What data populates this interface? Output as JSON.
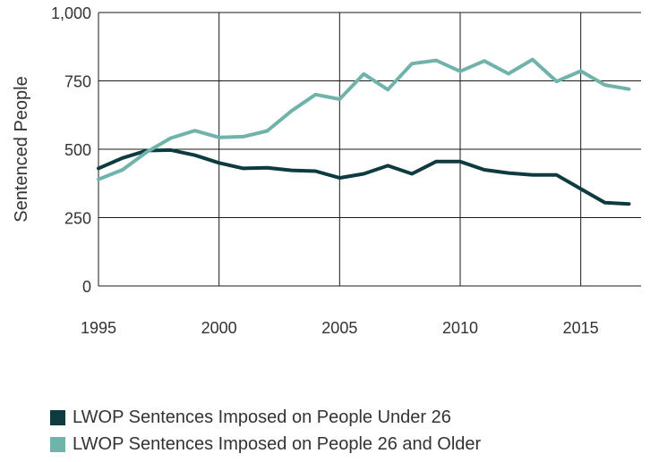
{
  "chart_data": {
    "type": "line",
    "ylabel": "Sentenced People",
    "xlabel": "",
    "xlim": [
      1995,
      2017.5
    ],
    "ylim": [
      0,
      1000
    ],
    "x_ticks": [
      1995,
      2000,
      2005,
      2010,
      2015
    ],
    "x_tick_labels": [
      "1995",
      "2000",
      "2005",
      "2010",
      "2015"
    ],
    "y_ticks": [
      0,
      250,
      500,
      750,
      1000
    ],
    "y_tick_labels": [
      "0",
      "250",
      "500",
      "750",
      "1,000"
    ],
    "grid": true,
    "legend_position": "bottom-left",
    "x": [
      1995,
      1996,
      1997,
      1998,
      1999,
      2000,
      2001,
      2002,
      2003,
      2004,
      2005,
      2006,
      2007,
      2008,
      2009,
      2010,
      2011,
      2012,
      2013,
      2014,
      2015,
      2016,
      2017
    ],
    "series": [
      {
        "name": "LWOP Sentences Imposed on People Under 26",
        "color": "#0d3b3f",
        "values": [
          430,
          468,
          495,
          497,
          478,
          450,
          430,
          432,
          423,
          420,
          395,
          410,
          440,
          410,
          455,
          455,
          425,
          413,
          406,
          406,
          355,
          305,
          300
        ]
      },
      {
        "name": "LWOP Sentences Imposed on People 26 and Older",
        "color": "#6fb3ab",
        "values": [
          390,
          425,
          490,
          541,
          568,
          543,
          546,
          567,
          640,
          700,
          683,
          775,
          718,
          813,
          825,
          785,
          823,
          776,
          828,
          748,
          786,
          735,
          720
        ]
      }
    ]
  }
}
